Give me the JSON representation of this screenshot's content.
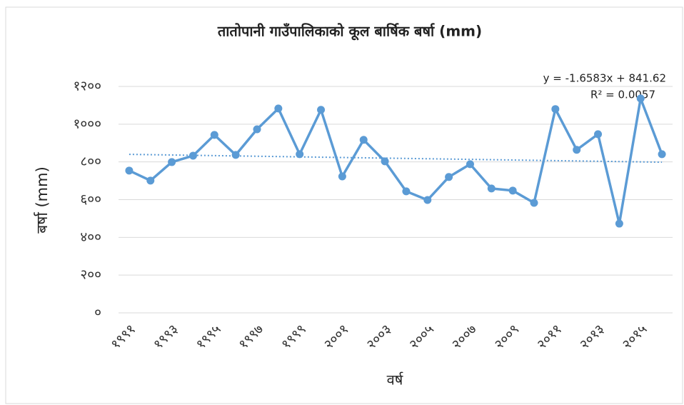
{
  "chart_data": {
    "type": "line",
    "title": "तातोपानी गाउँपालिकाको कूल बार्षिक बर्षा (mm)",
    "y_label": "बर्षा (mm)",
    "x_label": "वर्ष",
    "categories": [
      "१९९१",
      null,
      "१९९३",
      null,
      "१९९५",
      null,
      "१९९७",
      null,
      "१९९९",
      null,
      "२००१",
      null,
      "२००३",
      null,
      "२००५",
      null,
      "२००७",
      null,
      "२००९",
      null,
      "२०११",
      null,
      "२०१३",
      null,
      "२०१५",
      null
    ],
    "series": [
      {
        "name": "बर्षा",
        "color": "#5b9bd5",
        "values": [
          754,
          701,
          799,
          833,
          943,
          837,
          973,
          1083,
          841,
          1076,
          723,
          917,
          803,
          644,
          598,
          720,
          788,
          659,
          648,
          583,
          1080,
          864,
          947,
          473,
          1136,
          841
        ]
      }
    ],
    "ylim": [
      0,
      1200
    ],
    "yticks": [
      {
        "value": 0,
        "label": "०"
      },
      {
        "value": 200,
        "label": "२००"
      },
      {
        "value": 400,
        "label": "४००"
      },
      {
        "value": 600,
        "label": "६००"
      },
      {
        "value": 800,
        "label": "८००"
      },
      {
        "value": 1000,
        "label": "१०००"
      },
      {
        "value": 1200,
        "label": "१२००"
      }
    ],
    "grid": true,
    "trendline": {
      "slope": -1.6583,
      "intercept": 841.62,
      "equation": "y = -1.6583x + 841.62",
      "r2": "R² = 0.0057"
    }
  }
}
